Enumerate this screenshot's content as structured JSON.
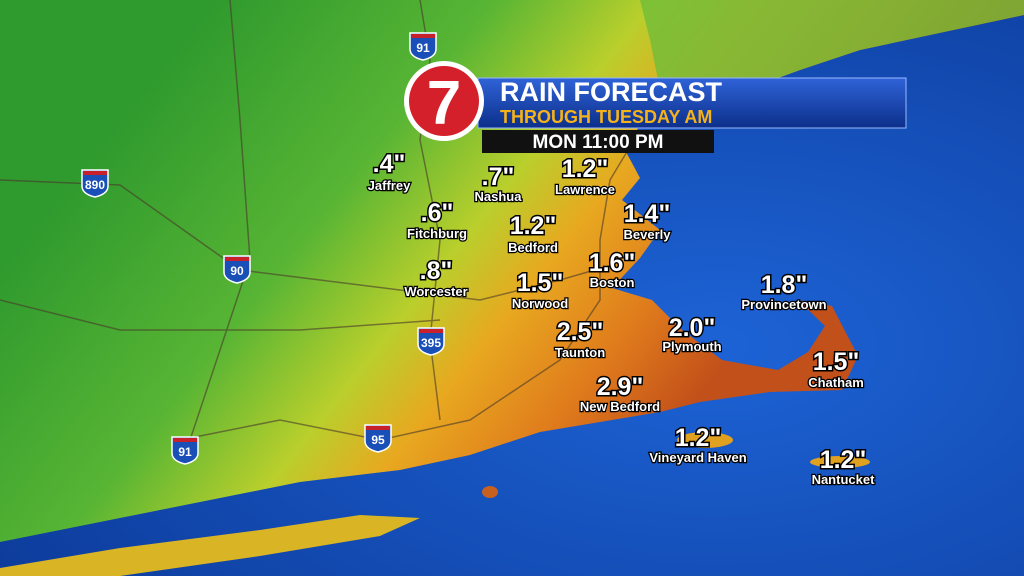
{
  "header": {
    "logo": "7",
    "title": "RAIN FORECAST",
    "subtitle": "THROUGH TUESDAY AM",
    "time": "MON 11:00 PM"
  },
  "cities": [
    {
      "amount": ".4\"",
      "name": "Jaffrey"
    },
    {
      "amount": ".7\"",
      "name": "Nashua"
    },
    {
      "amount": "1.2\"",
      "name": "Lawrence"
    },
    {
      "amount": ".6\"",
      "name": "Fitchburg"
    },
    {
      "amount": "1.2\"",
      "name": "Bedford"
    },
    {
      "amount": "1.4\"",
      "name": "Beverly"
    },
    {
      "amount": ".8\"",
      "name": "Worcester"
    },
    {
      "amount": "1.5\"",
      "name": "Norwood"
    },
    {
      "amount": "1.6\"",
      "name": "Boston"
    },
    {
      "amount": "1.8\"",
      "name": "Provincetown"
    },
    {
      "amount": "2.5\"",
      "name": "Taunton"
    },
    {
      "amount": "2.0\"",
      "name": "Plymouth"
    },
    {
      "amount": "1.5\"",
      "name": "Chatham"
    },
    {
      "amount": "2.9\"",
      "name": "New Bedford"
    },
    {
      "amount": "1.2\"",
      "name": "Vineyard Haven"
    },
    {
      "amount": "1.2\"",
      "name": "Nantucket"
    }
  ],
  "shields": [
    "91",
    "890",
    "90",
    "395",
    "95",
    "91"
  ]
}
